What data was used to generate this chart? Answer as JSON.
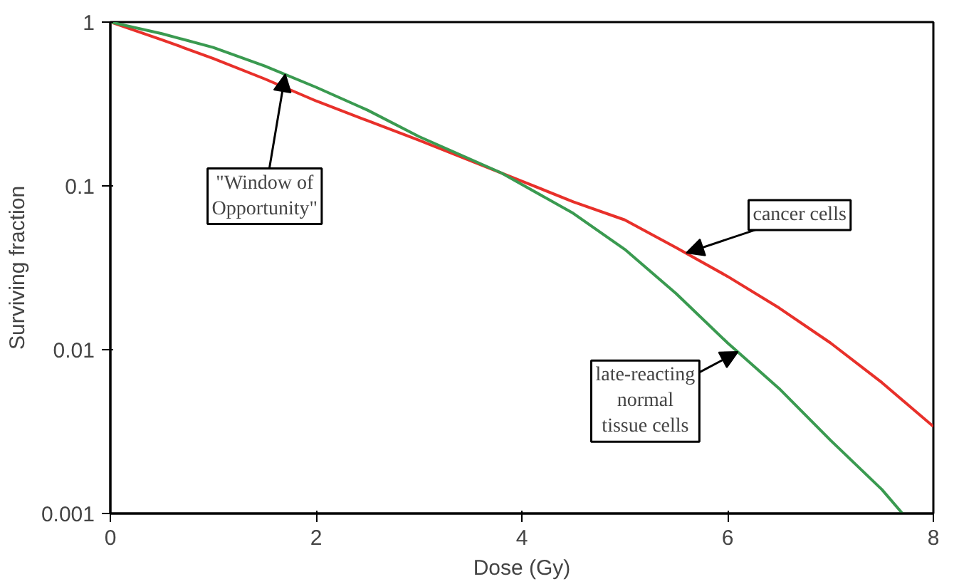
{
  "chart_data": {
    "type": "line",
    "xlabel": "Dose (Gy)",
    "ylabel": "Surviving fraction",
    "log": "y",
    "grid": false,
    "marker": "none",
    "line_style": "solid",
    "xlim": [
      0,
      8
    ],
    "xticks": [
      0,
      2,
      4,
      6,
      8
    ],
    "ylim": [
      0.001,
      1
    ],
    "yticks": [
      1,
      0.1,
      0.01,
      0.001
    ],
    "series": [
      {
        "color": "#e8302a",
        "x": [
          0,
          0.5,
          1,
          1.5,
          2,
          2.5,
          3,
          3.8,
          4.5,
          5,
          5.5,
          6,
          6.5,
          7,
          7.5,
          8
        ],
        "values": [
          1,
          0.78,
          0.6,
          0.45,
          0.33,
          0.25,
          0.19,
          0.12,
          0.08,
          0.062,
          0.042,
          0.028,
          0.018,
          0.011,
          0.0063,
          0.0034
        ]
      },
      {
        "color": "#3a9a50",
        "x": [
          0,
          0.5,
          1,
          1.5,
          2,
          2.5,
          3,
          3.8,
          4.5,
          5,
          5.5,
          6,
          6.5,
          7,
          7.5,
          7.7
        ],
        "values": [
          1,
          0.85,
          0.7,
          0.54,
          0.4,
          0.29,
          0.2,
          0.12,
          0.068,
          0.041,
          0.022,
          0.011,
          0.0058,
          0.0028,
          0.0014,
          0.001
        ]
      }
    ],
    "annotations": [
      {
        "text": "\"Window of\nOpportunity\"",
        "x": 1.7,
        "y": 0.48
      },
      {
        "text": "cancer cells",
        "x": 5.6,
        "y": 0.039
      },
      {
        "text": "late-reacting\nnormal\ntissue cells",
        "x": 6.1,
        "y": 0.0097
      }
    ]
  }
}
